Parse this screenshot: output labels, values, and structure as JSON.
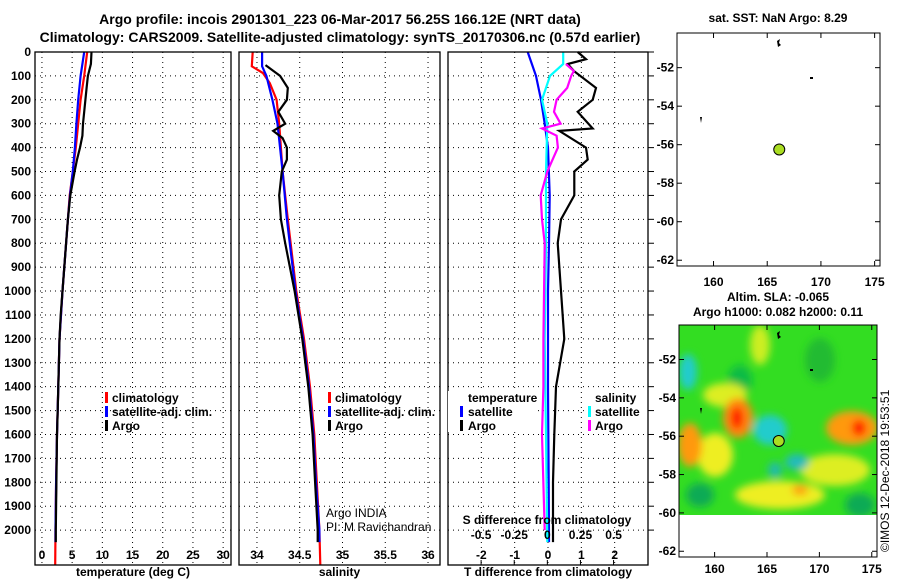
{
  "header": {
    "title_line1": "Argo profile: incois 2901301_223 06-Mar-2017 56.25S 166.12E (NRT data)",
    "title_line2": "Climatology: CARS2009. Satellite-adjusted climatology: synTS_20170306.nc (0.57d earlier)"
  },
  "chart_data": {
    "type": "line",
    "ylim": [
      0,
      2146
    ],
    "yticks": [
      0,
      100,
      200,
      300,
      400,
      500,
      600,
      700,
      800,
      900,
      1000,
      1100,
      1200,
      1300,
      1400,
      1500,
      1600,
      1700,
      1800,
      1900,
      2000
    ],
    "grid": true,
    "panels": [
      {
        "id": "temperature",
        "xlabel": "temperature (deg C)",
        "xlim": [
          -1.15,
          31.3
        ],
        "xticks": [
          0,
          5,
          10,
          15,
          20,
          25,
          30
        ],
        "xtick_labels": [
          "0",
          "5",
          "10",
          "15",
          "20",
          "25",
          "30"
        ],
        "legend": [
          {
            "label": "climatology",
            "color": "#ff0000"
          },
          {
            "label": "satellite-adj. clim.",
            "color": "#0000ff"
          },
          {
            "label": "Argo",
            "color": "#000000"
          }
        ],
        "series": [
          {
            "name": "climatology",
            "color": "#ff0000",
            "points": [
              [
                0,
                7.5
              ],
              [
                100,
                7.0
              ],
              [
                200,
                6.4
              ],
              [
                300,
                6.0
              ],
              [
                400,
                5.6
              ],
              [
                500,
                5.1
              ],
              [
                600,
                4.6
              ],
              [
                700,
                4.3
              ],
              [
                800,
                4.0
              ],
              [
                900,
                3.7
              ],
              [
                1000,
                3.4
              ],
              [
                1200,
                2.9
              ],
              [
                1400,
                2.7
              ],
              [
                1600,
                2.5
              ],
              [
                1800,
                2.35
              ],
              [
                2000,
                2.25
              ],
              [
                2146,
                2.2
              ]
            ]
          },
          {
            "name": "satellite-adj. clim.",
            "color": "#0000ff",
            "points": [
              [
                0,
                7.0
              ],
              [
                100,
                6.4
              ],
              [
                200,
                6.0
              ],
              [
                300,
                5.7
              ],
              [
                400,
                5.45
              ],
              [
                500,
                5.1
              ],
              [
                600,
                4.65
              ],
              [
                700,
                4.3
              ],
              [
                800,
                4.0
              ],
              [
                900,
                3.7
              ],
              [
                1000,
                3.4
              ],
              [
                1200,
                2.9
              ],
              [
                1400,
                2.7
              ],
              [
                1600,
                2.5
              ],
              [
                1800,
                2.35
              ],
              [
                2000,
                2.25
              ],
              [
                2050,
                2.25
              ]
            ]
          },
          {
            "name": "Argo",
            "color": "#000000",
            "points": [
              [
                0,
                8.2
              ],
              [
                50,
                8.1
              ],
              [
                100,
                7.6
              ],
              [
                150,
                7.4
              ],
              [
                200,
                7.2
              ],
              [
                250,
                7.0
              ],
              [
                300,
                6.8
              ],
              [
                350,
                6.7
              ],
              [
                400,
                6.3
              ],
              [
                450,
                5.8
              ],
              [
                500,
                5.4
              ],
              [
                600,
                4.7
              ],
              [
                700,
                4.3
              ],
              [
                800,
                4.0
              ],
              [
                900,
                3.7
              ],
              [
                1000,
                3.4
              ],
              [
                1100,
                3.1
              ],
              [
                1200,
                2.9
              ],
              [
                1300,
                2.8
              ],
              [
                1400,
                2.7
              ],
              [
                1500,
                2.6
              ],
              [
                1600,
                2.5
              ],
              [
                1700,
                2.45
              ],
              [
                1800,
                2.4
              ],
              [
                1900,
                2.35
              ],
              [
                2000,
                2.3
              ],
              [
                2050,
                2.3
              ]
            ]
          }
        ]
      },
      {
        "id": "salinity",
        "xlabel": "salinity",
        "xlim": [
          33.79,
          36.14
        ],
        "xticks": [
          34,
          34.5,
          35,
          35.5,
          36
        ],
        "xtick_labels": [
          "34",
          "34.5",
          "35",
          "35.5",
          "36"
        ],
        "legend": [
          {
            "label": "climatology",
            "color": "#ff0000"
          },
          {
            "label": "satellite-adj. clim.",
            "color": "#0000ff"
          },
          {
            "label": "Argo",
            "color": "#000000"
          }
        ],
        "annotation": [
          "Argo INDIA",
          "PI: M Ravichandran"
        ],
        "series": [
          {
            "name": "climatology",
            "color": "#ff0000",
            "points": [
              [
                0,
                33.95
              ],
              [
                60,
                33.94
              ],
              [
                88,
                34.07
              ],
              [
                130,
                34.15
              ],
              [
                200,
                34.23
              ],
              [
                300,
                34.26
              ],
              [
                500,
                34.3
              ],
              [
                700,
                34.36
              ],
              [
                1000,
                34.46
              ],
              [
                1200,
                34.55
              ],
              [
                1400,
                34.62
              ],
              [
                1600,
                34.67
              ],
              [
                1800,
                34.7
              ],
              [
                2000,
                34.73
              ],
              [
                2146,
                34.74
              ]
            ]
          },
          {
            "name": "satellite-adj. clim.",
            "color": "#0000ff",
            "points": [
              [
                0,
                34.06
              ],
              [
                60,
                34.06
              ],
              [
                100,
                34.11
              ],
              [
                200,
                34.18
              ],
              [
                300,
                34.24
              ],
              [
                500,
                34.3
              ],
              [
                700,
                34.35
              ],
              [
                1000,
                34.45
              ],
              [
                1200,
                34.54
              ],
              [
                1400,
                34.61
              ],
              [
                1600,
                34.66
              ],
              [
                1800,
                34.69
              ],
              [
                2000,
                34.73
              ],
              [
                2050,
                34.73
              ]
            ]
          },
          {
            "name": "Argo",
            "color": "#000000",
            "points": [
              [
                55,
                34.1
              ],
              [
                100,
                34.27
              ],
              [
                150,
                34.36
              ],
              [
                200,
                34.35
              ],
              [
                250,
                34.25
              ],
              [
                300,
                34.33
              ],
              [
                330,
                34.19
              ],
              [
                360,
                34.3
              ],
              [
                400,
                34.35
              ],
              [
                450,
                34.35
              ],
              [
                500,
                34.29
              ],
              [
                600,
                34.26
              ],
              [
                700,
                34.28
              ],
              [
                800,
                34.33
              ],
              [
                1000,
                34.44
              ],
              [
                1200,
                34.53
              ],
              [
                1400,
                34.6
              ],
              [
                1600,
                34.65
              ],
              [
                1800,
                34.68
              ],
              [
                2000,
                34.71
              ],
              [
                2050,
                34.71
              ]
            ]
          }
        ]
      },
      {
        "id": "difference",
        "xlabel": "T difference from climatology",
        "xlim": [
          -3,
          3
        ],
        "xticks": [
          -2,
          -1,
          0,
          1,
          2
        ],
        "xtick_labels": [
          "-2",
          "-1",
          "0",
          "1",
          "2"
        ],
        "s_label": "S difference from climatology",
        "s_xlim": [
          -0.75,
          0.76
        ],
        "s_xticks": [
          -0.5,
          -0.25,
          0,
          0.25,
          0.5
        ],
        "s_xtick_labels": [
          "-0.5",
          "-0.25",
          "0",
          "0.25",
          "0.5"
        ],
        "legend_temperature": {
          "heading": "temperature",
          "items": [
            {
              "label": "satellite",
              "color": "#0000ff"
            },
            {
              "label": "Argo",
              "color": "#000000"
            }
          ]
        },
        "legend_salinity": {
          "heading": "salinity",
          "items": [
            {
              "label": "satellite",
              "color": "#00ffff"
            },
            {
              "label": "Argo",
              "color": "#ff00ff"
            }
          ]
        },
        "series": [
          {
            "name": "T satellite",
            "axis": "T",
            "color": "#0000ff",
            "points": [
              [
                0,
                -0.61
              ],
              [
                100,
                -0.36
              ],
              [
                200,
                -0.21
              ],
              [
                300,
                -0.1
              ],
              [
                400,
                0.0
              ],
              [
                600,
                0.05
              ],
              [
                800,
                0.03
              ],
              [
                1000,
                0.0
              ],
              [
                1400,
                0.0
              ],
              [
                1800,
                0.02
              ],
              [
                2050,
                0.03
              ]
            ]
          },
          {
            "name": "T Argo",
            "axis": "T",
            "color": "#000000",
            "points": [
              [
                0,
                0.89
              ],
              [
                30,
                1.14
              ],
              [
                50,
                0.59
              ],
              [
                80,
                0.78
              ],
              [
                150,
                1.44
              ],
              [
                200,
                1.34
              ],
              [
                250,
                0.89
              ],
              [
                320,
                1.34
              ],
              [
                330,
                0.34
              ],
              [
                400,
                1.14
              ],
              [
                450,
                1.19
              ],
              [
                500,
                0.79
              ],
              [
                600,
                0.79
              ],
              [
                700,
                0.39
              ],
              [
                800,
                0.29
              ],
              [
                1000,
                0.39
              ],
              [
                1200,
                0.49
              ],
              [
                1400,
                0.24
              ],
              [
                1600,
                0.19
              ],
              [
                1800,
                0.15
              ],
              [
                2050,
                0.15
              ]
            ]
          },
          {
            "name": "S satellite",
            "axis": "S",
            "color": "#00ffff",
            "points": [
              [
                0,
                0.12
              ],
              [
                50,
                0.12
              ],
              [
                100,
                0.02
              ],
              [
                200,
                -0.04
              ],
              [
                300,
                0.0
              ],
              [
                500,
                -0.01
              ],
              [
                800,
                -0.01
              ],
              [
                1200,
                -0.02
              ],
              [
                1600,
                -0.01
              ],
              [
                2050,
                0.0
              ]
            ]
          },
          {
            "name": "S Argo",
            "axis": "S",
            "color": "#ff00ff",
            "points": [
              [
                50,
                0.14
              ],
              [
                80,
                0.2
              ],
              [
                100,
                0.18
              ],
              [
                150,
                0.15
              ],
              [
                200,
                0.07
              ],
              [
                250,
                0.05
              ],
              [
                300,
                0.1
              ],
              [
                320,
                -0.04
              ],
              [
                350,
                0.07
              ],
              [
                400,
                0.08
              ],
              [
                500,
                0.0
              ],
              [
                600,
                -0.05
              ],
              [
                700,
                -0.04
              ],
              [
                800,
                -0.02
              ],
              [
                1200,
                -0.03
              ],
              [
                1400,
                -0.03
              ],
              [
                1600,
                -0.04
              ],
              [
                2000,
                -0.02
              ]
            ]
          }
        ]
      }
    ],
    "maps": [
      {
        "id": "sst-map",
        "title": "sat. SST: NaN Argo: 8.29",
        "lonlim": [
          156.6,
          175.5
        ],
        "latlim": [
          -62.3,
          -50.2
        ],
        "lon_ticks": [
          160,
          165,
          170,
          175
        ],
        "lon_tick_labels": [
          "160",
          "165",
          "170",
          "175"
        ],
        "lat_ticks": [
          -52,
          -54,
          -56,
          -58,
          -60,
          -62
        ],
        "lat_tick_labels": [
          "-52",
          "-54",
          "-56",
          "-58",
          "-60",
          "-62"
        ],
        "argo_position": [
          166.12,
          -56.25
        ],
        "marker_color": "#aadd22"
      },
      {
        "id": "sla-map",
        "title_line1": "Altim. SLA: -0.065",
        "title_line2": "Argo h1000: 0.082 h2000: 0.11",
        "lonlim": [
          156.6,
          175.5
        ],
        "latlim": [
          -62.3,
          -50.2
        ],
        "lon_ticks": [
          160,
          165,
          170,
          175
        ],
        "lon_tick_labels": [
          "160",
          "165",
          "170",
          "175"
        ],
        "lat_ticks": [
          -52,
          -54,
          -56,
          -58,
          -60,
          -62
        ],
        "lat_tick_labels": [
          "-52",
          "-54",
          "-56",
          "-58",
          "-60",
          "-62"
        ],
        "argo_position": [
          166.12,
          -56.25
        ],
        "marker_color": "#aadd22"
      }
    ],
    "credit": "©IMOS 12-Dec-2018 19:53:51"
  }
}
